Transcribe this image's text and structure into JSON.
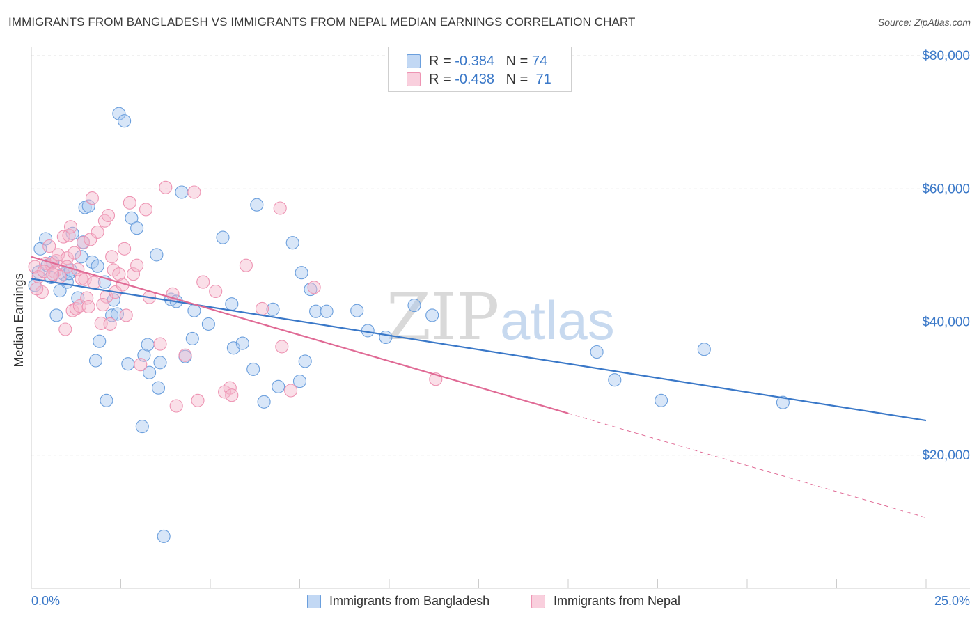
{
  "title": "IMMIGRANTS FROM BANGLADESH VS IMMIGRANTS FROM NEPAL MEDIAN EARNINGS CORRELATION CHART",
  "source": "Source: ZipAtlas.com",
  "watermark": {
    "zip": "ZIP",
    "atlas": "atlas"
  },
  "legend": {
    "r_label": "R =",
    "n_label": "N =",
    "rows": [
      {
        "r": "-0.384",
        "n": "74",
        "color": "#7aaee8"
      },
      {
        "r": "-0.438",
        "n": "71",
        "color": "#f2a0bc"
      }
    ]
  },
  "bottom_legend": [
    {
      "label": "Immigrants from Bangladesh",
      "color": "#7aaee8"
    },
    {
      "label": "Immigrants from Nepal",
      "color": "#f2a0bc"
    }
  ],
  "colors": {
    "blue": "#3a78c8",
    "blue_fill": "#a9c8f0",
    "pink": "#e06a95",
    "pink_fill": "#f5b8cc",
    "grid": "#e2e2e2",
    "axis_text": "#3a78c8"
  },
  "chart_data": {
    "type": "scatter",
    "title": "IMMIGRANTS FROM BANGLADESH VS IMMIGRANTS FROM NEPAL MEDIAN EARNINGS CORRELATION CHART",
    "xlabel": "",
    "ylabel": "Median Earnings",
    "xlim": [
      0,
      25
    ],
    "ylim": [
      0,
      80000
    ],
    "x_tick_labels": [
      "0.0%",
      "25.0%"
    ],
    "y_ticks": [
      20000,
      40000,
      60000,
      80000
    ],
    "y_tick_labels": [
      "$20,000",
      "$40,000",
      "$60,000",
      "$80,000"
    ],
    "grid": true,
    "legend_position": "top-center",
    "series": [
      {
        "name": "Immigrants from Bangladesh",
        "color": "#3a78c8",
        "trend": {
          "x": [
            0,
            25
          ],
          "y": [
            46500,
            25200
          ],
          "dashed_from": null
        },
        "points": [
          [
            0.1,
            45500
          ],
          [
            0.2,
            47500
          ],
          [
            0.25,
            51000
          ],
          [
            0.4,
            52500
          ],
          [
            0.45,
            48500
          ],
          [
            0.55,
            46700
          ],
          [
            0.6,
            49000
          ],
          [
            0.7,
            41000
          ],
          [
            0.8,
            44700
          ],
          [
            0.9,
            47200
          ],
          [
            1.0,
            46000
          ],
          [
            1.05,
            47300
          ],
          [
            1.1,
            47800
          ],
          [
            1.15,
            53300
          ],
          [
            1.3,
            43600
          ],
          [
            1.4,
            49800
          ],
          [
            1.45,
            52000
          ],
          [
            1.5,
            57200
          ],
          [
            1.6,
            57400
          ],
          [
            1.7,
            49000
          ],
          [
            1.8,
            34200
          ],
          [
            1.85,
            48400
          ],
          [
            1.9,
            37100
          ],
          [
            2.05,
            46000
          ],
          [
            2.1,
            28200
          ],
          [
            2.25,
            41000
          ],
          [
            2.3,
            43300
          ],
          [
            2.4,
            41200
          ],
          [
            2.45,
            71300
          ],
          [
            2.6,
            70200
          ],
          [
            2.7,
            33700
          ],
          [
            2.8,
            55600
          ],
          [
            2.95,
            54100
          ],
          [
            3.1,
            24300
          ],
          [
            3.15,
            35000
          ],
          [
            3.25,
            36600
          ],
          [
            3.3,
            32400
          ],
          [
            3.5,
            50100
          ],
          [
            3.55,
            30100
          ],
          [
            3.6,
            33900
          ],
          [
            3.7,
            7800
          ],
          [
            3.9,
            43400
          ],
          [
            4.05,
            43100
          ],
          [
            4.2,
            59500
          ],
          [
            4.3,
            34800
          ],
          [
            4.5,
            37500
          ],
          [
            4.55,
            41700
          ],
          [
            4.95,
            39700
          ],
          [
            5.35,
            52700
          ],
          [
            5.6,
            42700
          ],
          [
            5.65,
            36100
          ],
          [
            5.9,
            36800
          ],
          [
            6.2,
            32900
          ],
          [
            6.3,
            57600
          ],
          [
            6.5,
            28000
          ],
          [
            6.75,
            41900
          ],
          [
            6.9,
            30300
          ],
          [
            7.3,
            51900
          ],
          [
            7.5,
            31100
          ],
          [
            7.55,
            47400
          ],
          [
            7.65,
            34100
          ],
          [
            7.8,
            44900
          ],
          [
            7.95,
            41600
          ],
          [
            8.25,
            41600
          ],
          [
            9.1,
            41700
          ],
          [
            9.4,
            38700
          ],
          [
            9.9,
            37700
          ],
          [
            10.7,
            42500
          ],
          [
            11.2,
            41000
          ],
          [
            15.8,
            35500
          ],
          [
            16.3,
            31300
          ],
          [
            17.6,
            28200
          ],
          [
            18.8,
            35900
          ],
          [
            21.0,
            27900
          ]
        ]
      },
      {
        "name": "Immigrants from Nepal",
        "color": "#e06a95",
        "trend": {
          "x": [
            0,
            25
          ],
          "y": [
            49800,
            10600
          ],
          "dashed_from": 15
        },
        "points": [
          [
            0.1,
            48300
          ],
          [
            0.2,
            46800
          ],
          [
            0.3,
            44500
          ],
          [
            0.4,
            48800
          ],
          [
            0.5,
            51400
          ],
          [
            0.55,
            48700
          ],
          [
            0.65,
            47500
          ],
          [
            0.7,
            49200
          ],
          [
            0.75,
            50100
          ],
          [
            0.8,
            46800
          ],
          [
            0.9,
            52800
          ],
          [
            0.95,
            38900
          ],
          [
            1.0,
            49600
          ],
          [
            1.05,
            53000
          ],
          [
            1.1,
            54300
          ],
          [
            1.15,
            41700
          ],
          [
            1.2,
            50400
          ],
          [
            1.25,
            42000
          ],
          [
            1.3,
            47900
          ],
          [
            1.35,
            42400
          ],
          [
            1.4,
            46500
          ],
          [
            1.45,
            51900
          ],
          [
            1.5,
            46400
          ],
          [
            1.55,
            43600
          ],
          [
            1.6,
            42300
          ],
          [
            1.65,
            52400
          ],
          [
            1.7,
            58600
          ],
          [
            1.75,
            45900
          ],
          [
            1.85,
            53500
          ],
          [
            1.95,
            39800
          ],
          [
            2.05,
            55200
          ],
          [
            2.1,
            43800
          ],
          [
            2.15,
            56000
          ],
          [
            2.2,
            39700
          ],
          [
            2.25,
            49800
          ],
          [
            2.3,
            47800
          ],
          [
            2.35,
            44500
          ],
          [
            2.45,
            47200
          ],
          [
            2.55,
            45600
          ],
          [
            2.6,
            51000
          ],
          [
            2.65,
            41000
          ],
          [
            2.75,
            57900
          ],
          [
            2.85,
            47200
          ],
          [
            2.95,
            48500
          ],
          [
            3.05,
            33600
          ],
          [
            3.2,
            56900
          ],
          [
            3.3,
            43700
          ],
          [
            3.6,
            36700
          ],
          [
            3.75,
            60200
          ],
          [
            3.95,
            44200
          ],
          [
            4.05,
            27400
          ],
          [
            4.3,
            35000
          ],
          [
            4.55,
            59500
          ],
          [
            4.65,
            28200
          ],
          [
            4.8,
            46000
          ],
          [
            5.15,
            44600
          ],
          [
            5.4,
            29500
          ],
          [
            5.55,
            30100
          ],
          [
            5.6,
            29000
          ],
          [
            6.0,
            48500
          ],
          [
            6.45,
            42000
          ],
          [
            6.95,
            57100
          ],
          [
            7.0,
            36300
          ],
          [
            7.25,
            29700
          ],
          [
            7.9,
            45200
          ],
          [
            11.3,
            31400
          ],
          [
            0.15,
            45000
          ],
          [
            0.35,
            47600
          ],
          [
            0.6,
            47200
          ],
          [
            1.0,
            48300
          ],
          [
            2.0,
            42600
          ]
        ]
      }
    ]
  }
}
